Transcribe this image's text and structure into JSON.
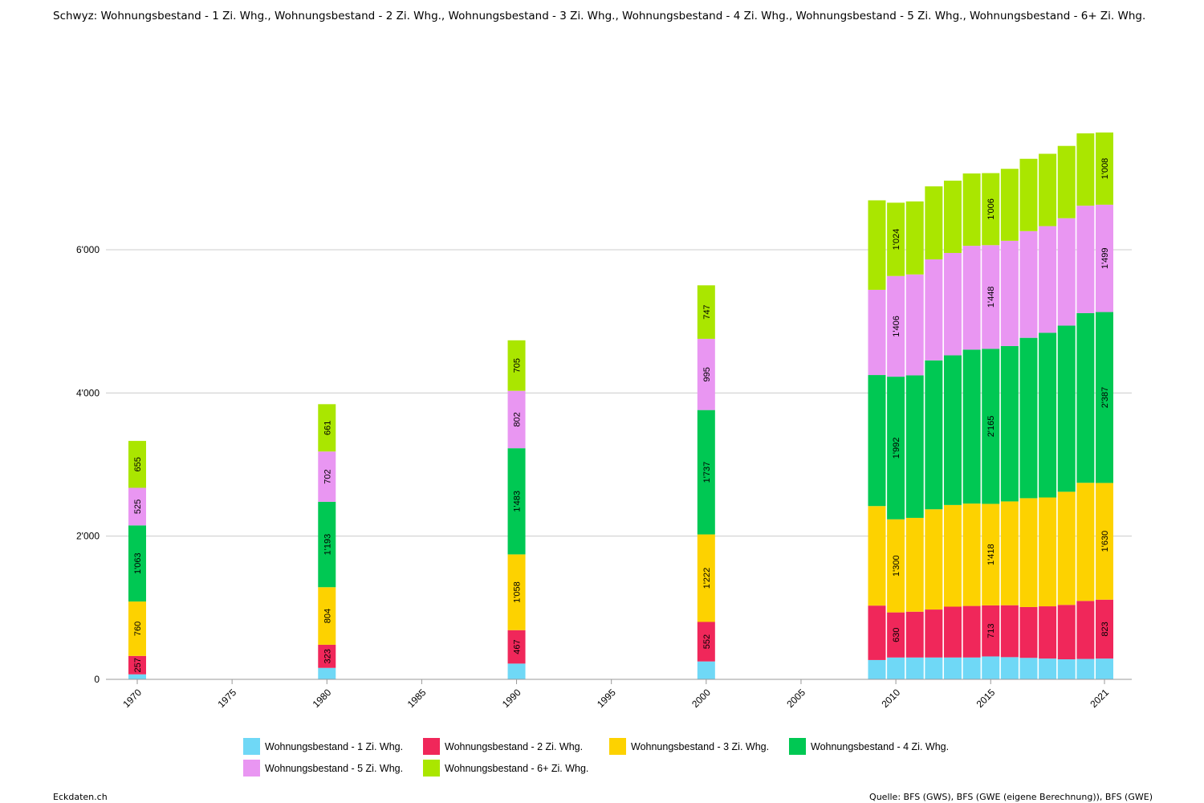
{
  "title": "Schwyz: Wohnungsbestand - 1 Zi. Whg., Wohnungsbestand - 2 Zi. Whg., Wohnungsbestand - 3 Zi. Whg., Wohnungsbestand - 4 Zi. Whg., Wohnungsbestand - 5 Zi. Whg., Wohnungsbestand - 6+ Zi. Whg.",
  "footer": {
    "brand": "Eckdaten.ch",
    "source": "Quelle: BFS (GWS), BFS (GWE (eigene Berechnung)), BFS (GWE)"
  },
  "chart_data": {
    "type": "bar",
    "stacked": true,
    "title": "Schwyz: Wohnungsbestand - 1 Zi. Whg., Wohnungsbestand - 2 Zi. Whg., Wohnungsbestand - 3 Zi. Whg., Wohnungsbestand - 4 Zi. Whg., Wohnungsbestand - 5 Zi. Whg., Wohnungsbestand - 6+ Zi. Whg.",
    "xlabel": "",
    "ylabel": "",
    "xlim": [
      1970,
      2021
    ],
    "ylim": [
      0,
      8000
    ],
    "x_ticks": [
      1970,
      1975,
      1980,
      1985,
      1990,
      1995,
      2000,
      2005,
      2010,
      2015,
      2021
    ],
    "y_ticks": [
      0,
      2000,
      4000,
      6000
    ],
    "y_tick_labels": [
      "0",
      "2'000",
      "4'000",
      "6'000"
    ],
    "grid": true,
    "legend_position": "bottom",
    "x": [
      1970,
      1980,
      1990,
      2000,
      2009,
      2010,
      2011,
      2012,
      2013,
      2014,
      2015,
      2016,
      2017,
      2018,
      2019,
      2020,
      2021
    ],
    "series": [
      {
        "name": "Wohnungsbestand - 1 Zi. Whg.",
        "color": "#6fd8f6",
        "values": [
          70,
          160,
          220,
          250,
          270,
          305,
          305,
          305,
          305,
          305,
          320,
          310,
          300,
          290,
          280,
          285,
          290
        ]
      },
      {
        "name": "Wohnungsbestand - 2 Zi. Whg.",
        "color": "#f0275a",
        "values": [
          257,
          323,
          467,
          552,
          760,
          630,
          640,
          670,
          710,
          720,
          713,
          725,
          710,
          730,
          760,
          810,
          823
        ]
      },
      {
        "name": "Wohnungsbestand - 3 Zi. Whg.",
        "color": "#fdd200",
        "values": [
          760,
          804,
          1058,
          1222,
          1390,
          1300,
          1310,
          1400,
          1420,
          1430,
          1418,
          1450,
          1520,
          1520,
          1580,
          1650,
          1630
        ]
      },
      {
        "name": "Wohnungsbestand - 4 Zi. Whg.",
        "color": "#00c853",
        "values": [
          1063,
          1193,
          1483,
          1737,
          1830,
          1992,
          1990,
          2080,
          2090,
          2150,
          2165,
          2170,
          2240,
          2300,
          2320,
          2370,
          2387
        ]
      },
      {
        "name": "Wohnungsbestand - 5 Zi. Whg.",
        "color": "#e996f2",
        "values": [
          525,
          702,
          802,
          995,
          1190,
          1406,
          1410,
          1410,
          1430,
          1450,
          1448,
          1470,
          1490,
          1490,
          1500,
          1500,
          1499
        ]
      },
      {
        "name": "Wohnungsbestand - 6+ Zi. Whg.",
        "color": "#aae600",
        "values": [
          655,
          661,
          705,
          747,
          1250,
          1024,
          1020,
          1020,
          1010,
          1010,
          1006,
          1005,
          1010,
          1010,
          1010,
          1010,
          1008
        ]
      }
    ],
    "labeled_x": [
      1970,
      1980,
      1990,
      2000,
      2010,
      2015,
      2021
    ]
  }
}
